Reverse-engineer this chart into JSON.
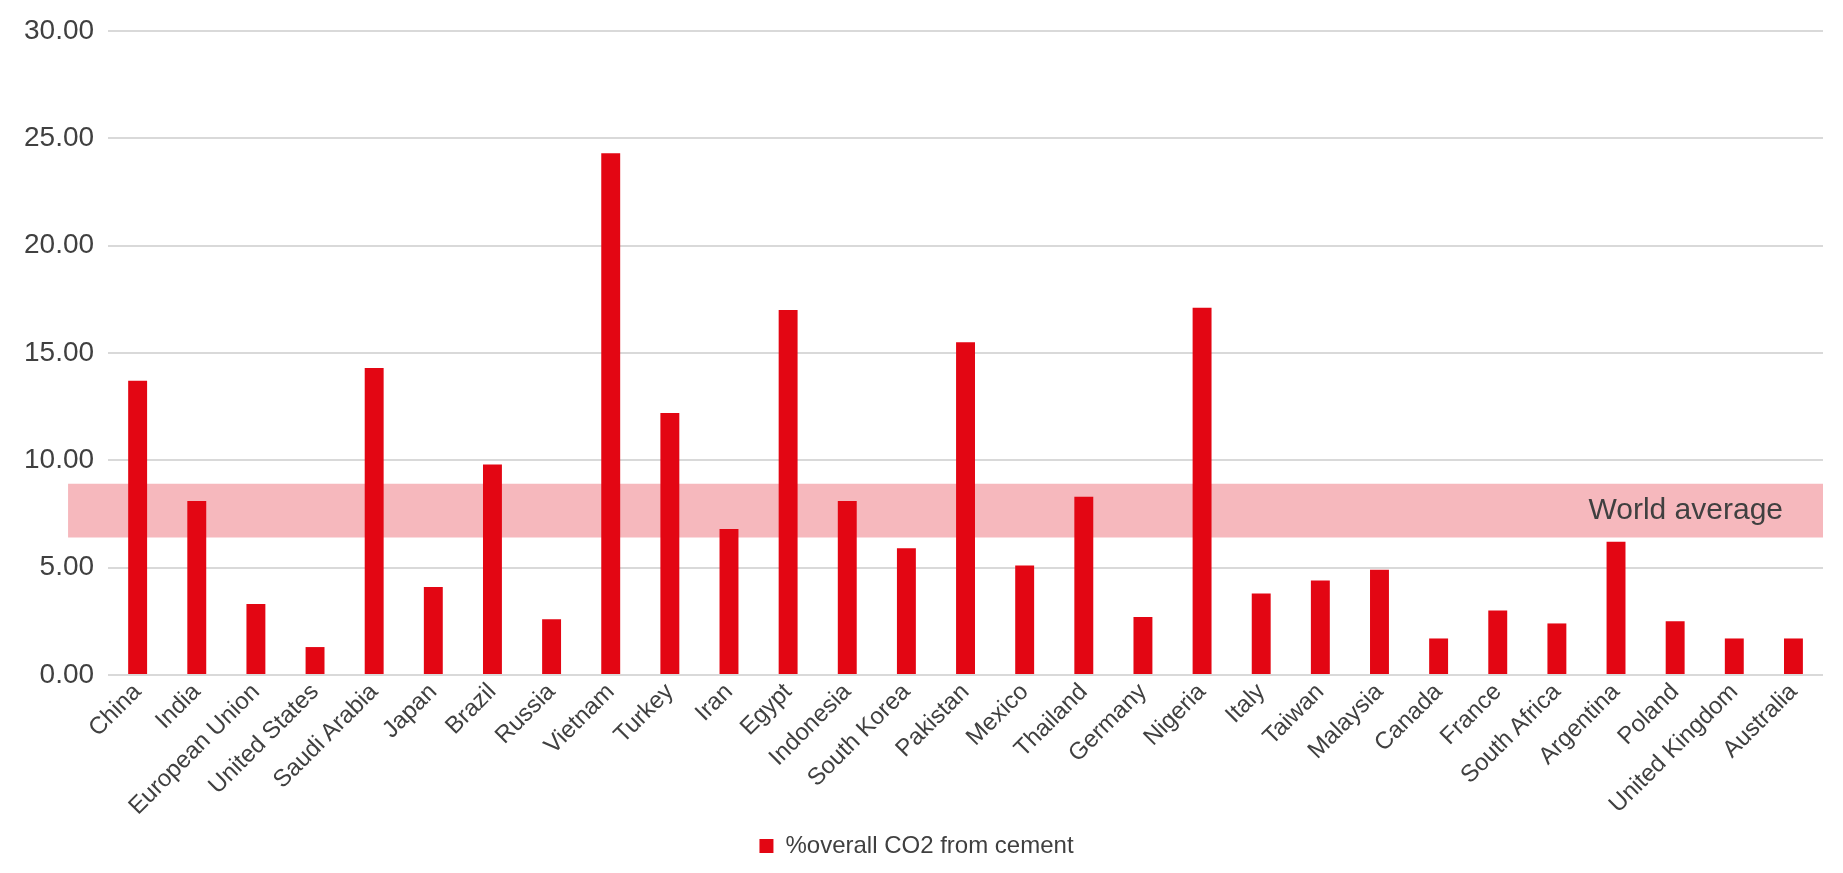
{
  "chart_data": {
    "type": "bar",
    "categories": [
      "China",
      "India",
      "European Union",
      "United States",
      "Saudi Arabia",
      "Japan",
      "Brazil",
      "Russia",
      "Vietnam",
      "Turkey",
      "Iran",
      "Egypt",
      "Indonesia",
      "South Korea",
      "Pakistan",
      "Mexico",
      "Thailand",
      "Germany",
      "Nigeria",
      "Italy",
      "Taiwan",
      "Malaysia",
      "Canada",
      "France",
      "South Africa",
      "Argentina",
      "Poland",
      "United Kingdom",
      "Australia"
    ],
    "series": [
      {
        "name": "%overall CO2 from cement",
        "color": "#e30613",
        "values": [
          13.7,
          8.1,
          3.3,
          1.3,
          14.3,
          4.1,
          9.8,
          2.6,
          24.3,
          12.2,
          6.8,
          17.0,
          8.1,
          5.9,
          15.5,
          5.1,
          8.3,
          2.7,
          17.1,
          3.8,
          4.4,
          4.9,
          1.7,
          3.0,
          2.4,
          6.2,
          2.5,
          1.7,
          1.7
        ]
      }
    ],
    "ylim": [
      0,
      30
    ],
    "yticks": [
      {
        "value": 0,
        "label": "0.00"
      },
      {
        "value": 5,
        "label": "5.00"
      },
      {
        "value": 10,
        "label": "10.00"
      },
      {
        "value": 15,
        "label": "15.00"
      },
      {
        "value": 20,
        "label": "20.00"
      },
      {
        "value": 25,
        "label": "25.00"
      },
      {
        "value": 30,
        "label": "30.00"
      }
    ],
    "bands": [
      {
        "axis": "y",
        "from": 6.4,
        "to": 8.9,
        "label": "World average",
        "color": "#f6b8bd"
      }
    ],
    "grid": "y",
    "legend": "bottom"
  }
}
